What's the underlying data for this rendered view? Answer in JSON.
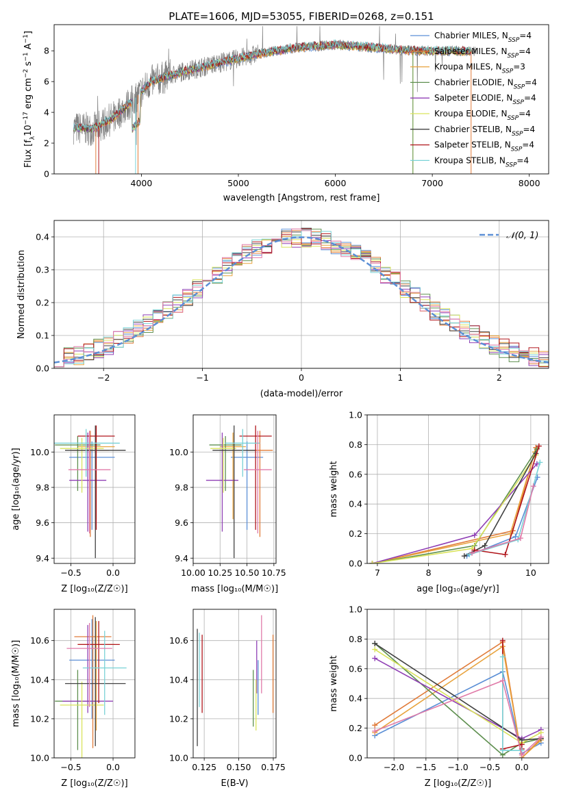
{
  "figure_title": "PLATE=1606, MJD=53055, FIBERID=0268, z=0.151",
  "colors": {
    "chabrier_miles": "#5b8fd6",
    "salpeter_miles": "#e07b39",
    "kroupa_miles": "#e8a33d",
    "chabrier_elodie": "#5e8f4f",
    "salpeter_elodie": "#8f3fb5",
    "kroupa_elodie": "#d9e35a",
    "chabrier_stelib": "#404040",
    "salpeter_stelib": "#b0141a",
    "kroupa_stelib": "#78d2d6",
    "pink": "#e07aa8",
    "data_gray": "#7f7f7f",
    "normal_curve": "#5b8fd6",
    "grid": "#b0b0b0"
  },
  "chart_data": [
    {
      "id": "spectrum",
      "type": "line",
      "title": "PLATE=1606, MJD=53055, FIBERID=0268, z=0.151",
      "xlabel": "wavelength [Angstrom, rest frame]",
      "ylabel_parts": [
        "Flux [f",
        "λ",
        "10",
        "−17",
        " erg cm",
        "−2",
        " s",
        "−1",
        " A",
        "−1",
        "]"
      ],
      "xlim": [
        3100,
        8200
      ],
      "ylim": [
        0,
        9.7
      ],
      "xticks": [
        4000,
        5000,
        6000,
        7000,
        8000
      ],
      "yticks": [
        0,
        2,
        4,
        6,
        8
      ],
      "grid": false,
      "legend_position": "right",
      "continuum_x": [
        3300,
        3500,
        3700,
        3900,
        4100,
        4400,
        4800,
        5200,
        5600,
        6000,
        6400,
        6800,
        7200,
        7600,
        8000
      ],
      "continuum_y": [
        3.0,
        2.9,
        3.6,
        4.7,
        6.0,
        6.6,
        7.2,
        7.8,
        8.2,
        8.4,
        8.2,
        8.0,
        8.0,
        7.9,
        7.9
      ],
      "legend": [
        {
          "color_key": "chabrier_miles",
          "label": "Chabrier MILES, N",
          "sub": "SSP",
          "suffix": "=4"
        },
        {
          "color_key": "salpeter_miles",
          "label": "Salpeter MILES, N",
          "sub": "SSP",
          "suffix": "=4"
        },
        {
          "color_key": "kroupa_miles",
          "label": "Kroupa MILES, N",
          "sub": "SSP",
          "suffix": "=3"
        },
        {
          "color_key": "chabrier_elodie",
          "label": "Chabrier ELODIE, N",
          "sub": "SSP",
          "suffix": "=4"
        },
        {
          "color_key": "salpeter_elodie",
          "label": "Salpeter ELODIE, N",
          "sub": "SSP",
          "suffix": "=4"
        },
        {
          "color_key": "kroupa_elodie",
          "label": "Kroupa ELODIE, N",
          "sub": "SSP",
          "suffix": "=4"
        },
        {
          "color_key": "chabrier_stelib",
          "label": "Chabrier STELIB, N",
          "sub": "SSP",
          "suffix": "=4"
        },
        {
          "color_key": "salpeter_stelib",
          "label": "Salpeter STELIB, N",
          "sub": "SSP",
          "suffix": "=4"
        },
        {
          "color_key": "kroupa_stelib",
          "label": "Kroupa STELIB, N",
          "sub": "SSP",
          "suffix": "=4"
        }
      ]
    },
    {
      "id": "residuals",
      "type": "line",
      "xlabel": "(data-model)/error",
      "ylabel": "Normed distribution",
      "xlim": [
        -2.5,
        2.5
      ],
      "ylim": [
        0,
        0.45
      ],
      "xticks": [
        -2,
        -1,
        0,
        1,
        2
      ],
      "yticks": [
        0.0,
        0.1,
        0.2,
        0.3,
        0.4
      ],
      "grid": true,
      "legend_position": "top-right",
      "legend_label": "𝒩(0, 1)",
      "bin_width": 0.1
    },
    {
      "id": "age_vs_Z",
      "type": "scatter",
      "xlabel": "Z [log₁₀(Z/Z☉)]",
      "ylabel": "age  [log₁₀(age/yr)]",
      "xlim": [
        -0.7,
        0.26
      ],
      "ylim": [
        9.37,
        10.21
      ],
      "xticks": [
        -0.5,
        0.0
      ],
      "xticklabels": [
        "−0.5",
        "0.0"
      ],
      "yticks": [
        9.4,
        9.6,
        9.8,
        10.0
      ],
      "grid": true,
      "points": [
        {
          "color_key": "chabrier_miles",
          "x": -0.25,
          "y": 9.97,
          "xerr": 0.27,
          "ylo": 9.56,
          "yhi": 10.06
        },
        {
          "color_key": "salpeter_miles",
          "x": -0.27,
          "y": 10.01,
          "xerr": 0.22,
          "ylo": 9.52,
          "yhi": 10.12
        },
        {
          "color_key": "kroupa_miles",
          "x": -0.2,
          "y": 10.03,
          "xerr": 0.22,
          "ylo": 9.62,
          "yhi": 10.11
        },
        {
          "color_key": "chabrier_elodie",
          "x": -0.42,
          "y": 10.04,
          "xerr": 0.27,
          "ylo": 9.78,
          "yhi": 10.09
        },
        {
          "color_key": "salpeter_elodie",
          "x": -0.3,
          "y": 9.84,
          "xerr": 0.22,
          "ylo": 9.55,
          "yhi": 10.11
        },
        {
          "color_key": "kroupa_elodie",
          "x": -0.37,
          "y": 10.02,
          "xerr": 0.26,
          "ylo": 9.77,
          "yhi": 10.08
        },
        {
          "color_key": "chabrier_stelib",
          "x": -0.21,
          "y": 10.01,
          "xerr": 0.36,
          "ylo": 9.4,
          "yhi": 10.15
        },
        {
          "color_key": "salpeter_stelib",
          "x": -0.2,
          "y": 10.09,
          "xerr": 0.22,
          "ylo": 9.56,
          "yhi": 10.15
        },
        {
          "color_key": "kroupa_stelib",
          "x": -0.32,
          "y": 10.05,
          "xerr": 0.4,
          "ylo": 9.86,
          "yhi": 10.13
        },
        {
          "color_key": "pink",
          "x": -0.28,
          "y": 9.9,
          "xerr": 0.25,
          "ylo": 9.54,
          "yhi": 10.12
        }
      ]
    },
    {
      "id": "age_vs_mass",
      "type": "scatter",
      "xlabel": "mass [log₁₀(M/M☉)]",
      "xlim": [
        10.0,
        10.77
      ],
      "ylim": [
        9.37,
        10.21
      ],
      "xticks": [
        10.0,
        10.25,
        10.5,
        10.75
      ],
      "xticklabels": [
        "10.00",
        "10.25",
        "10.50",
        "10.75"
      ],
      "yticks": [
        9.4,
        9.6,
        9.8,
        10.0
      ],
      "grid": true,
      "points": [
        {
          "color_key": "chabrier_miles",
          "x": 10.5,
          "y": 9.97,
          "xerr": 0.15,
          "ylo": 9.56,
          "yhi": 10.06
        },
        {
          "color_key": "salpeter_miles",
          "x": 10.62,
          "y": 10.01,
          "xerr": 0.12,
          "ylo": 9.52,
          "yhi": 10.12
        },
        {
          "color_key": "kroupa_miles",
          "x": 10.37,
          "y": 10.03,
          "xerr": 0.12,
          "ylo": 9.62,
          "yhi": 10.11
        },
        {
          "color_key": "chabrier_elodie",
          "x": 10.3,
          "y": 10.04,
          "xerr": 0.15,
          "ylo": 9.78,
          "yhi": 10.09
        },
        {
          "color_key": "salpeter_elodie",
          "x": 10.27,
          "y": 9.84,
          "xerr": 0.15,
          "ylo": 9.55,
          "yhi": 10.11
        },
        {
          "color_key": "kroupa_elodie",
          "x": 10.28,
          "y": 10.02,
          "xerr": 0.12,
          "ylo": 9.77,
          "yhi": 10.08
        },
        {
          "color_key": "chabrier_stelib",
          "x": 10.38,
          "y": 10.01,
          "xerr": 0.2,
          "ylo": 9.4,
          "yhi": 10.15
        },
        {
          "color_key": "salpeter_stelib",
          "x": 10.58,
          "y": 10.09,
          "xerr": 0.15,
          "ylo": 9.56,
          "yhi": 10.15
        },
        {
          "color_key": "kroupa_stelib",
          "x": 10.46,
          "y": 10.05,
          "xerr": 0.16,
          "ylo": 9.86,
          "yhi": 10.13
        },
        {
          "color_key": "pink",
          "x": 10.6,
          "y": 9.9,
          "xerr": 0.13,
          "ylo": 9.54,
          "yhi": 10.12
        }
      ]
    },
    {
      "id": "weight_vs_age",
      "type": "line",
      "xlabel": "age  [log₁₀(age/yr)]",
      "ylabel": "mass weight",
      "xlim": [
        6.8,
        10.35
      ],
      "ylim": [
        0,
        1
      ],
      "xticks": [
        7,
        8,
        9,
        10
      ],
      "yticks": [
        0.0,
        0.2,
        0.4,
        0.6,
        0.8,
        1.0
      ],
      "grid": true,
      "series": [
        {
          "color_key": "chabrier_miles",
          "x": [
            8.75,
            9.7,
            10.13
          ],
          "y": [
            0.05,
            0.18,
            0.58
          ]
        },
        {
          "color_key": "salpeter_miles",
          "x": [
            6.9,
            9.65,
            10.1
          ],
          "y": [
            0.0,
            0.22,
            0.78
          ]
        },
        {
          "color_key": "kroupa_miles",
          "x": [
            6.9,
            9.6,
            10.08
          ],
          "y": [
            0.0,
            0.2,
            0.75
          ]
        },
        {
          "color_key": "chabrier_elodie",
          "x": [
            6.9,
            8.9,
            10.12
          ],
          "y": [
            0.0,
            0.12,
            0.77
          ]
        },
        {
          "color_key": "salpeter_elodie",
          "x": [
            6.9,
            8.9,
            10.12
          ],
          "y": [
            0.0,
            0.19,
            0.67
          ]
        },
        {
          "color_key": "kroupa_elodie",
          "x": [
            6.9,
            8.85,
            10.1
          ],
          "y": [
            0.0,
            0.1,
            0.73
          ]
        },
        {
          "color_key": "chabrier_stelib",
          "x": [
            8.7,
            9.1,
            10.1
          ],
          "y": [
            0.05,
            0.12,
            0.74
          ]
        },
        {
          "color_key": "salpeter_stelib",
          "x": [
            8.9,
            9.5,
            10.16
          ],
          "y": [
            0.09,
            0.06,
            0.79
          ]
        },
        {
          "color_key": "kroupa_stelib",
          "x": [
            8.8,
            9.75,
            10.18
          ],
          "y": [
            0.06,
            0.16,
            0.68
          ]
        },
        {
          "color_key": "pink",
          "x": [
            8.85,
            9.8,
            10.05
          ],
          "y": [
            0.07,
            0.17,
            0.52
          ]
        }
      ]
    },
    {
      "id": "mass_vs_Z",
      "type": "scatter",
      "xlabel": "Z [log₁₀(Z/Z☉)]",
      "ylabel": "mass [log₁₀(M/M☉)]",
      "xlim": [
        -0.7,
        0.26
      ],
      "ylim": [
        10.0,
        10.76
      ],
      "xticks": [
        -0.5,
        0.0
      ],
      "xticklabels": [
        "−0.5",
        "0.0"
      ],
      "yticks": [
        10.0,
        10.2,
        10.4,
        10.6
      ],
      "grid": true,
      "points": [
        {
          "color_key": "chabrier_miles",
          "x": -0.25,
          "y": 10.5,
          "xerr": 0.27,
          "ylo": 10.2,
          "yhi": 10.71
        },
        {
          "color_key": "salpeter_miles",
          "x": -0.24,
          "y": 10.62,
          "xerr": 0.22,
          "ylo": 10.05,
          "yhi": 10.73
        },
        {
          "color_key": "kroupa_miles",
          "x": -0.2,
          "y": 10.58,
          "xerr": 0.22,
          "ylo": 10.14,
          "yhi": 10.7
        },
        {
          "color_key": "chabrier_elodie",
          "x": -0.42,
          "y": 10.29,
          "xerr": 0.27,
          "ylo": 10.04,
          "yhi": 10.45
        },
        {
          "color_key": "salpeter_elodie",
          "x": -0.3,
          "y": 10.29,
          "xerr": 0.3,
          "ylo": 10.23,
          "yhi": 10.68
        },
        {
          "color_key": "kroupa_elodie",
          "x": -0.37,
          "y": 10.27,
          "xerr": 0.26,
          "ylo": 10.0,
          "yhi": 10.39
        },
        {
          "color_key": "chabrier_stelib",
          "x": -0.21,
          "y": 10.38,
          "xerr": 0.36,
          "ylo": 10.06,
          "yhi": 10.72
        },
        {
          "color_key": "salpeter_stelib",
          "x": -0.17,
          "y": 10.58,
          "xerr": 0.25,
          "ylo": 10.28,
          "yhi": 10.7
        },
        {
          "color_key": "kroupa_stelib",
          "x": -0.1,
          "y": 10.46,
          "xerr": 0.26,
          "ylo": 10.22,
          "yhi": 10.65
        },
        {
          "color_key": "pink",
          "x": -0.28,
          "y": 10.56,
          "xerr": 0.27,
          "ylo": 10.26,
          "yhi": 10.69
        }
      ]
    },
    {
      "id": "mass_vs_ebv",
      "type": "scatter",
      "xlabel": "E(B-V)",
      "xlim": [
        0.117,
        0.177
      ],
      "ylim": [
        10.0,
        10.76
      ],
      "xticks": [
        0.125,
        0.15,
        0.175
      ],
      "xticklabels": [
        "0.125",
        "0.150",
        "0.175"
      ],
      "yticks": [
        10.0,
        10.2,
        10.4,
        10.6
      ],
      "grid": true,
      "points": [
        {
          "color_key": "chabrier_miles",
          "x": 0.164,
          "ylo": 10.22,
          "yhi": 10.5
        },
        {
          "color_key": "salpeter_miles",
          "x": 0.1748,
          "ylo": 10.23,
          "yhi": 10.63
        },
        {
          "color_key": "chabrier_elodie",
          "x": 0.1605,
          "ylo": 10.16,
          "yhi": 10.45
        },
        {
          "color_key": "salpeter_elodie",
          "x": 0.163,
          "ylo": 10.33,
          "yhi": 10.6
        },
        {
          "color_key": "kroupa_elodie",
          "x": 0.1625,
          "ylo": 10.14,
          "yhi": 10.4
        },
        {
          "color_key": "chabrier_stelib",
          "x": 0.12,
          "ylo": 10.06,
          "yhi": 10.66
        },
        {
          "color_key": "salpeter_stelib",
          "x": 0.1235,
          "ylo": 10.23,
          "yhi": 10.63
        },
        {
          "color_key": "kroupa_stelib",
          "x": 0.1215,
          "ylo": 10.26,
          "yhi": 10.64
        },
        {
          "color_key": "pink",
          "x": 0.1665,
          "ylo": 10.33,
          "yhi": 10.73
        }
      ]
    },
    {
      "id": "weight_vs_Z",
      "type": "line",
      "xlabel": "Z [log₁₀(Z/Z☉)]",
      "ylabel": "mass weight",
      "xlim": [
        -2.42,
        0.42
      ],
      "ylim": [
        0,
        1
      ],
      "xticks": [
        -2.0,
        -1.5,
        -1.0,
        -0.5,
        0.0
      ],
      "xticklabels": [
        "−2.0",
        "−1.5",
        "−1.0",
        "−0.5",
        "0.0"
      ],
      "yticks": [
        0.0,
        0.2,
        0.4,
        0.6,
        0.8,
        1.0
      ],
      "grid": true,
      "series": [
        {
          "color_key": "chabrier_miles",
          "x": [
            -2.3,
            -0.3,
            0.0,
            0.3
          ],
          "y": [
            0.15,
            0.58,
            0.03,
            0.1
          ]
        },
        {
          "color_key": "salpeter_miles",
          "x": [
            -2.3,
            -0.3,
            0.0,
            0.3
          ],
          "y": [
            0.22,
            0.78,
            0.0,
            0.13
          ]
        },
        {
          "color_key": "kroupa_miles",
          "x": [
            -2.3,
            -0.3,
            0.0,
            0.3
          ],
          "y": [
            0.17,
            0.75,
            0.0,
            0.12
          ]
        },
        {
          "color_key": "chabrier_elodie",
          "x": [
            -2.3,
            -0.3,
            0.0,
            0.3
          ],
          "y": [
            0.77,
            0.02,
            0.1,
            0.13
          ]
        },
        {
          "color_key": "salpeter_elodie",
          "x": [
            -2.3,
            0.0,
            0.3
          ],
          "y": [
            0.67,
            0.13,
            0.19
          ]
        },
        {
          "color_key": "kroupa_elodie",
          "x": [
            -2.3,
            0.0,
            0.3
          ],
          "y": [
            0.73,
            0.1,
            0.17
          ]
        },
        {
          "color_key": "chabrier_stelib",
          "x": [
            -2.3,
            0.0,
            0.3
          ],
          "y": [
            0.77,
            0.12,
            0.13
          ]
        },
        {
          "color_key": "salpeter_stelib",
          "x": [
            -0.3,
            -0.3,
            0.0,
            0.0
          ],
          "y": [
            0.79,
            0.06,
            0.09,
            0.06
          ]
        },
        {
          "color_key": "kroupa_stelib",
          "x": [
            -0.3,
            -0.3,
            0.0
          ],
          "y": [
            0.68,
            0.05,
            0.05
          ]
        },
        {
          "color_key": "pink",
          "x": [
            -2.3,
            -0.3,
            0.0,
            0.3
          ],
          "y": [
            0.18,
            0.52,
            0.02,
            0.14
          ]
        }
      ]
    }
  ]
}
